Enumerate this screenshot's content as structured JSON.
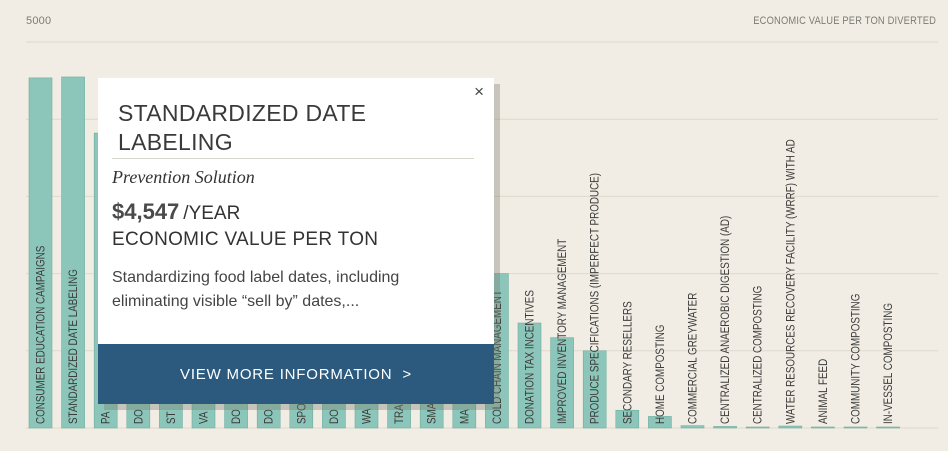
{
  "chart_data": {
    "type": "bar",
    "ylabel": "ECONOMIC VALUE PER TON DIVERTED",
    "ylim": [
      0,
      5000
    ],
    "grid": true,
    "y_tick_label": "5000",
    "categories": [
      "CONSUMER EDUCATION CAMPAIGNS",
      "STANDARDIZED DATE LABELING",
      "PA",
      "DO",
      "ST",
      "VA",
      "DO",
      "DO",
      "SPO",
      "DO",
      "WA",
      "TRA",
      "SMA",
      "MA",
      "COLD CHAIN MANAGEMENT",
      "DONATION TAX INCENTIVES",
      "IMPROVED INVENTORY MANAGEMENT",
      "PRODUCE SPECIFICATIONS (IMPERFECT PRODUCE)",
      "SECONDARY RESELLERS",
      "HOME COMPOSTING",
      "COMMERCIAL GREYWATER",
      "CENTRALIZED ANAEROBIC DIGESTION (AD)",
      "CENTRALIZED COMPOSTING",
      "WATER RESOURCES RECOVERY FACILITY (WRRF) WITH AD",
      "ANIMAL FEED",
      "COMMUNITY COMPOSTING",
      "IN-VESSEL COMPOSTING"
    ],
    "values": [
      4535,
      4547,
      3820,
      3400,
      3100,
      2900,
      2700,
      2600,
      2400,
      2300,
      2200,
      2150,
      2100,
      2050,
      2000,
      1360,
      1170,
      1000,
      230,
      150,
      30,
      20,
      12,
      25,
      6,
      4,
      2
    ]
  },
  "tooltip": {
    "title": "STANDARDIZED DATE LABELING",
    "category": "Prevention Solution",
    "value": "$4,547",
    "unit": "/YEAR",
    "metric": "ECONOMIC VALUE PER TON",
    "description": "Standardizing food label dates, including eliminating visible “sell by” dates,...",
    "button_label": "VIEW MORE INFORMATION",
    "button_chevron": ">",
    "close_symbol": "×"
  },
  "colors": {
    "bar": "#8cc6ba",
    "bar_stroke": "#6fae9f",
    "grid": "#ddd9ce",
    "button": "#2b5a7e",
    "background": "#f1ede4"
  }
}
